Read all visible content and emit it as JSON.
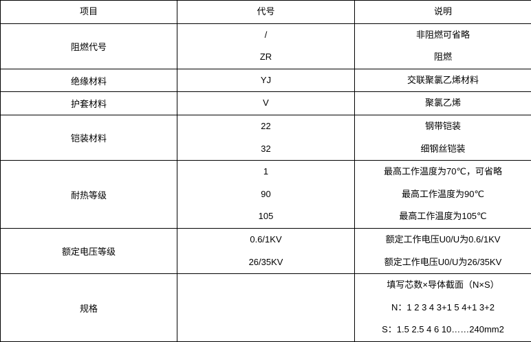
{
  "header": {
    "item": "项目",
    "code": "代号",
    "desc": "说明"
  },
  "rows": [
    {
      "item": "阻燃代号",
      "codes": [
        "/",
        "ZR"
      ],
      "descs": [
        "非阻燃可省略",
        "阻燃"
      ]
    },
    {
      "item": "绝缘材料",
      "codes": [
        "YJ"
      ],
      "descs": [
        "交联聚氯乙烯材料"
      ]
    },
    {
      "item": "护套材料",
      "codes": [
        "V"
      ],
      "descs": [
        "聚氯乙烯"
      ]
    },
    {
      "item": "铠装材料",
      "codes": [
        "22",
        "32"
      ],
      "descs": [
        "钢带铠装",
        "细钢丝铠装"
      ]
    },
    {
      "item": "耐热等级",
      "codes": [
        "1",
        "90",
        "105"
      ],
      "descs": [
        "最高工作温度为70℃，可省略",
        "最高工作温度为90℃",
        "最高工作温度为105℃"
      ]
    },
    {
      "item": "额定电压等级",
      "codes": [
        "0.6/1KV",
        "26/35KV"
      ],
      "descs": [
        "额定工作电压U0/U为0.6/1KV",
        "额定工作电压U0/U为26/35KV"
      ]
    },
    {
      "item": "规格",
      "codes": [],
      "descs": [
        "填写芯数×导体截面（N×S）",
        "N：1 2 3 4 3+1 5 4+1 3+2",
        "S：1.5 2.5 4 6 10……240mm2"
      ]
    }
  ]
}
